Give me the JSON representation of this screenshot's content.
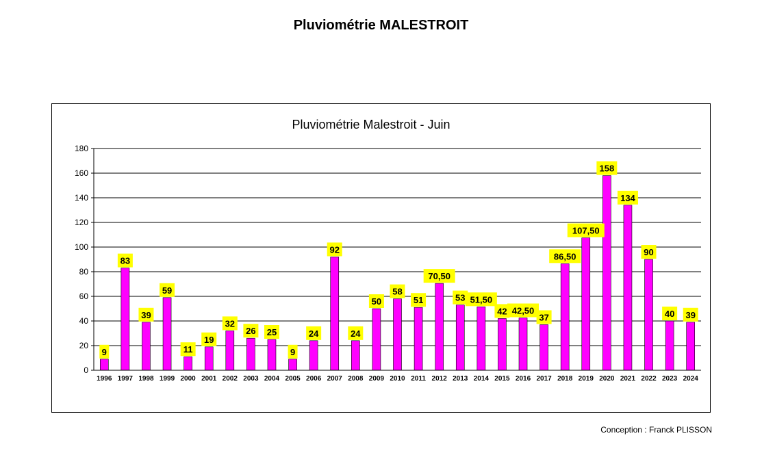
{
  "page": {
    "title": "Pluviométrie MALESTROIT",
    "credit": "Conception : Franck PLISSON"
  },
  "colors": {
    "bar": "#ff00ff",
    "label_background": "#ffff00",
    "gridline": "#000000"
  },
  "chart_data": {
    "type": "bar",
    "title": "Pluviométrie Malestroit - Juin",
    "xlabel": "",
    "ylabel": "",
    "ylim": [
      0,
      180
    ],
    "yticks": [
      0,
      20,
      40,
      60,
      80,
      100,
      120,
      140,
      160,
      180
    ],
    "grid": true,
    "categories": [
      "1996",
      "1997",
      "1998",
      "1999",
      "2000",
      "2001",
      "2002",
      "2003",
      "2004",
      "2005",
      "2006",
      "2007",
      "2008",
      "2009",
      "2010",
      "2011",
      "2012",
      "2013",
      "2014",
      "2015",
      "2016",
      "2017",
      "2018",
      "2019",
      "2020",
      "2021",
      "2022",
      "2023",
      "2024"
    ],
    "values": [
      9,
      83,
      39,
      59,
      11,
      19,
      32,
      26,
      25,
      9,
      24,
      92,
      24,
      50,
      58,
      51,
      70.5,
      53,
      51.5,
      42,
      42.5,
      37,
      86.5,
      107.5,
      158,
      134,
      90,
      40,
      39
    ],
    "data_labels": [
      "9",
      "83",
      "39",
      "59",
      "11",
      "19",
      "32",
      "26",
      "25",
      "9",
      "24",
      "92",
      "24",
      "50",
      "58",
      "51",
      "70,50",
      "53",
      "51,50",
      "42",
      "42,50",
      "37",
      "86,50",
      "107,50",
      "158",
      "134",
      "90",
      "40",
      "39"
    ]
  }
}
